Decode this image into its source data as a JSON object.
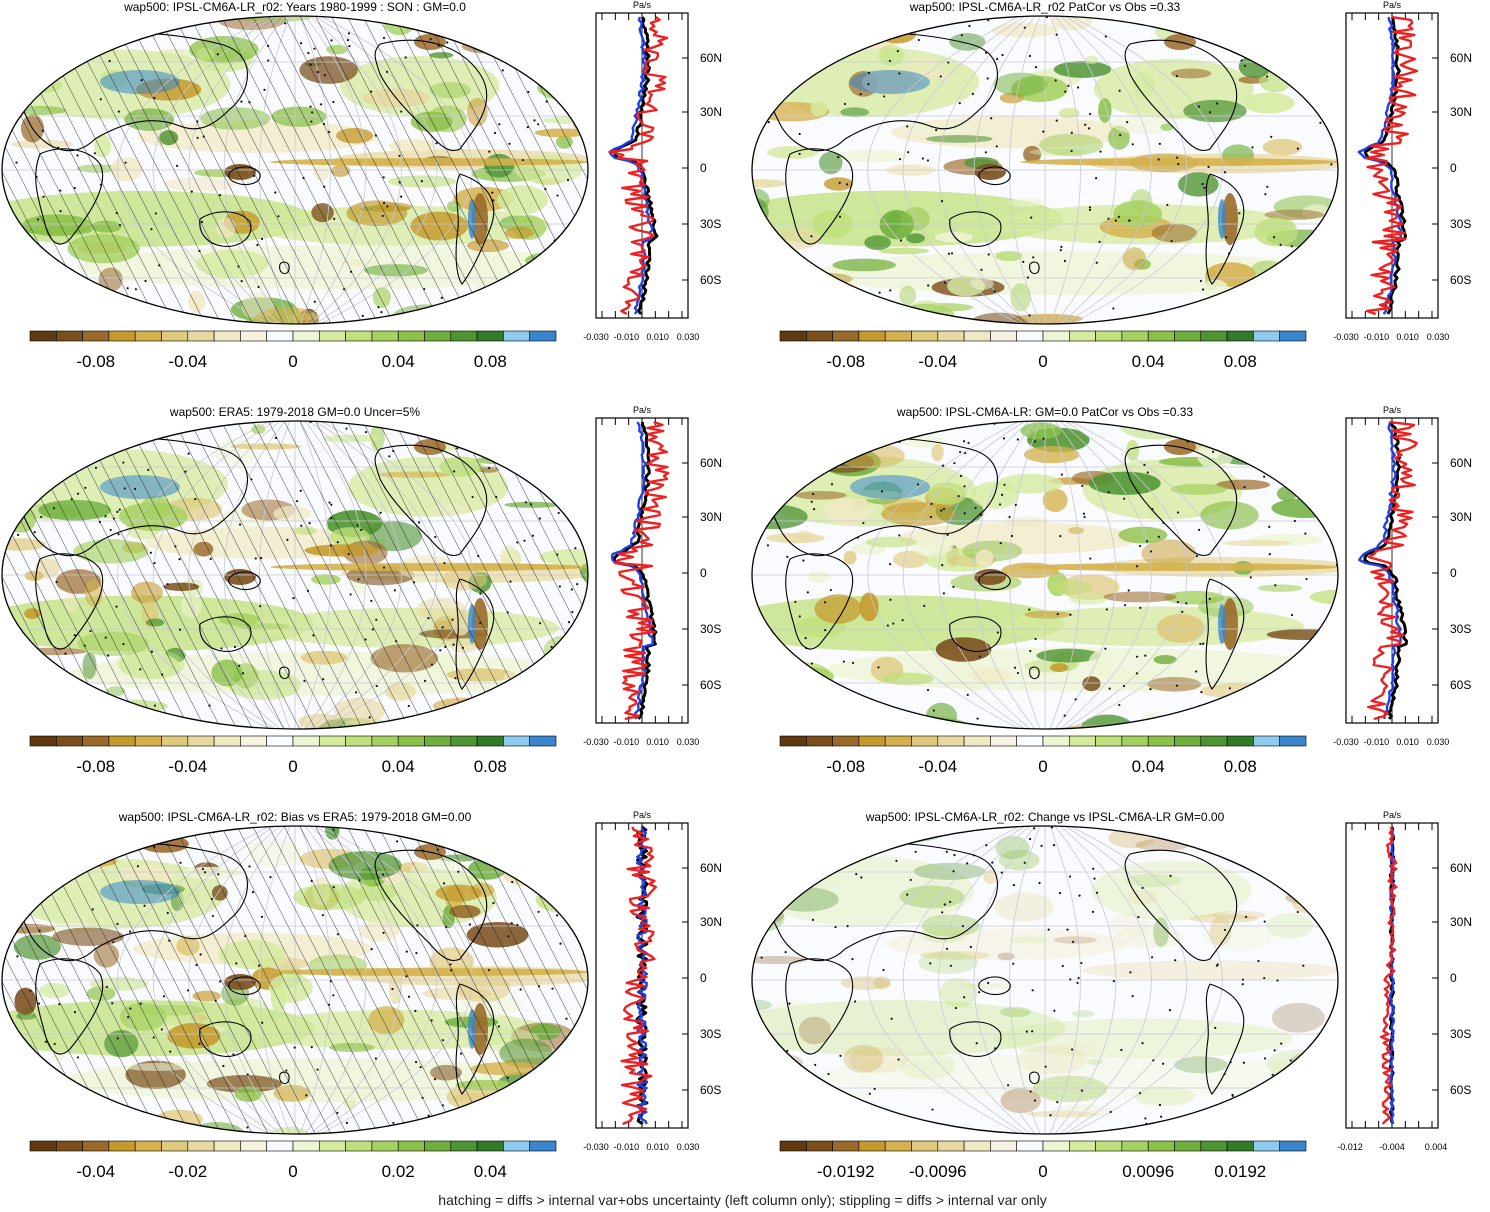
{
  "colors": {
    "palette": [
      "#5e3a0e",
      "#7a4f1c",
      "#9a6a2a",
      "#c59a2d",
      "#d4b14d",
      "#dfc97a",
      "#e8d9a0",
      "#f1e9c4",
      "#f8f3e0",
      "#fafbfe",
      "#eef5d4",
      "#d4ea9c",
      "#bfe07a",
      "#a6d160",
      "#8cc149",
      "#6fae3c",
      "#4f9432",
      "#317a2a",
      "#8fcbee",
      "#3a86cc"
    ],
    "obs_line": "#1f3fe6",
    "model_line": "#000000",
    "bias_line": "#ee2020"
  },
  "panels": [
    {
      "title": "wap500: IPSL-CM6A-LR_r02: Years 1980-1999 : SON : GM=0.0",
      "hatching": true,
      "colorbar_ticks": [
        "-0.08",
        "-0.04",
        "0",
        "0.04",
        "0.08"
      ],
      "profile_unit": "Pa/s",
      "profile_lat_labels": [
        "60N",
        "30N",
        "0",
        "30S",
        "60S"
      ],
      "profile_x_ticks": [
        "-0.030",
        "-0.010",
        "0.010",
        "0.030"
      ],
      "profile_lines": [
        "model_line",
        "obs_line",
        "bias_line"
      ]
    },
    {
      "title": "wap500: IPSL-CM6A-LR_r02 PatCor vs Obs =0.33",
      "hatching": false,
      "colorbar_ticks": [
        "-0.08",
        "-0.04",
        "0",
        "0.04",
        "0.08"
      ],
      "profile_unit": "Pa/s",
      "profile_lat_labels": [
        "60N",
        "30N",
        "0",
        "30S",
        "60S"
      ],
      "profile_x_ticks": [
        "-0.030",
        "-0.010",
        "0.010",
        "0.030"
      ],
      "profile_lines": [
        "model_line",
        "obs_line",
        "bias_line"
      ]
    },
    {
      "title": "wap500: ERA5: 1979-2018 GM=0.0 Uncer=5%",
      "hatching": true,
      "colorbar_ticks": [
        "-0.08",
        "-0.04",
        "0",
        "0.04",
        "0.08"
      ],
      "profile_unit": "Pa/s",
      "profile_lat_labels": [
        "60N",
        "30N",
        "0",
        "30S",
        "60S"
      ],
      "profile_x_ticks": [
        "-0.030",
        "-0.010",
        "0.010",
        "0.030"
      ],
      "profile_lines": [
        "model_line",
        "obs_line",
        "bias_line"
      ]
    },
    {
      "title": "wap500: IPSL-CM6A-LR: GM=0.0 PatCor vs Obs =0.33",
      "hatching": false,
      "colorbar_ticks": [
        "-0.08",
        "-0.04",
        "0",
        "0.04",
        "0.08"
      ],
      "profile_unit": "Pa/s",
      "profile_lat_labels": [
        "60N",
        "30N",
        "0",
        "30S",
        "60S"
      ],
      "profile_x_ticks": [
        "-0.030",
        "-0.010",
        "0.010",
        "0.030"
      ],
      "profile_lines": [
        "model_line",
        "obs_line",
        "bias_line"
      ]
    },
    {
      "title": "wap500: IPSL-CM6A-LR_r02: Bias vs ERA5: 1979-2018  GM=0.00",
      "hatching": true,
      "colorbar_ticks": [
        "-0.04",
        "-0.02",
        "0",
        "0.02",
        "0.04"
      ],
      "profile_unit": "Pa/s",
      "profile_lat_labels": [
        "60N",
        "30N",
        "0",
        "30S",
        "60S"
      ],
      "profile_x_ticks": [
        "-0.030",
        "-0.010",
        "0.010",
        "0.030"
      ],
      "profile_lines": [
        "model_line",
        "obs_line",
        "bias_line"
      ]
    },
    {
      "title": "wap500: IPSL-CM6A-LR_r02: Change vs IPSL-CM6A-LR GM=0.00",
      "hatching": false,
      "colorbar_ticks": [
        "-0.0192",
        "-0.0096",
        "0",
        "0.0096",
        "0.0192"
      ],
      "profile_unit": "Pa/s",
      "profile_lat_labels": [
        "60N",
        "30N",
        "0",
        "30S",
        "60S"
      ],
      "profile_x_ticks": [
        "-0.012",
        "-0.004",
        "0.004"
      ],
      "profile_lines": [
        "model_line",
        "obs_line",
        "bias_line"
      ]
    }
  ],
  "footnote": "hatching = diffs > internal var+obs uncertainty (left column only); stippling = diffs > internal var only"
}
